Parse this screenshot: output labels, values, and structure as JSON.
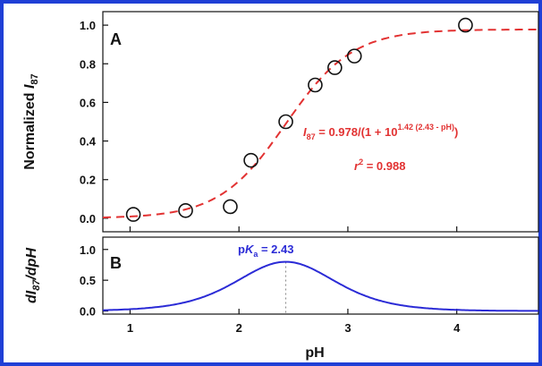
{
  "frame_color": "#1f3fd6",
  "chart_data": [
    {
      "type": "scatter",
      "panel_label": "A",
      "ylabel": {
        "main": "Normalized ",
        "italic": "I",
        "sub": "87"
      },
      "xlim": [
        0.75,
        4.75
      ],
      "ylim": [
        -0.07,
        1.07
      ],
      "yticks": [
        "0.0",
        "0.2",
        "0.4",
        "0.6",
        "0.8",
        "1.0"
      ],
      "ytick_values": [
        0,
        0.2,
        0.4,
        0.6,
        0.8,
        1.0
      ],
      "points": [
        {
          "x": 1.03,
          "y": 0.02
        },
        {
          "x": 1.51,
          "y": 0.04
        },
        {
          "x": 1.92,
          "y": 0.06
        },
        {
          "x": 2.11,
          "y": 0.3
        },
        {
          "x": 2.43,
          "y": 0.5
        },
        {
          "x": 2.7,
          "y": 0.69
        },
        {
          "x": 2.88,
          "y": 0.78
        },
        {
          "x": 3.06,
          "y": 0.84
        },
        {
          "x": 4.08,
          "y": 1.0
        }
      ],
      "fit": {
        "amplitude": 0.978,
        "slope": 1.42,
        "pKa": 2.43,
        "style": "dashed",
        "color": "#e23232"
      },
      "equation": {
        "lhs_i": "I",
        "lhs_sub": "87",
        "mid": " = 0.978/(1 + 10",
        "sup": "1.42 (2.43 - pH)",
        "end": ")"
      },
      "r2": {
        "r": "r",
        "sup": "2",
        "rest": " = 0.988"
      },
      "marker_color": "#111111"
    },
    {
      "type": "line",
      "panel_label": "B",
      "ylabel": {
        "prefix": "dI",
        "sub": "87",
        "suffix": "/dpH"
      },
      "xlim": [
        0.75,
        4.75
      ],
      "ylim": [
        -0.05,
        1.2
      ],
      "yticks": [
        "0.0",
        "0.5",
        "1.0"
      ],
      "ytick_values": [
        0,
        0.5,
        1.0
      ],
      "xlabel": "pH",
      "xticks": [
        "1",
        "2",
        "3",
        "4"
      ],
      "xtick_values": [
        1,
        2,
        3,
        4
      ],
      "curve": {
        "description_color": "#2b2bd6"
      },
      "peak_label": {
        "p": "p",
        "k": "K",
        "sub": "a",
        "rest": " = 2.43"
      },
      "peak_x": 2.43
    }
  ]
}
